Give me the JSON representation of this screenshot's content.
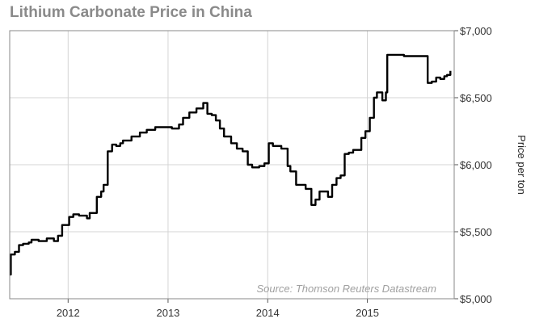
{
  "chart_data": {
    "type": "line",
    "title": "Lithium Carbonate Price in China",
    "xlabel": "",
    "ylabel": "Price per ton",
    "annotation": "Source: Thomson Reuters Datastream",
    "x_ticks": [
      "2012",
      "2013",
      "2014",
      "2015"
    ],
    "y_ticks": [
      "$5,000",
      "$5,500",
      "$6,000",
      "$6,500",
      "$7,000"
    ],
    "xlim": [
      "2011-06-01",
      "2015-11-15"
    ],
    "ylim": [
      5000,
      7000
    ],
    "grid": true,
    "series": [
      {
        "x": [
          "2011-06-01",
          "2011-06-05",
          "2011-06-20",
          "2011-07-05",
          "2011-07-20",
          "2011-08-10",
          "2011-08-20",
          "2011-09-15",
          "2011-10-15",
          "2011-11-10",
          "2011-11-25",
          "2011-12-10",
          "2012-01-05",
          "2012-01-20",
          "2012-02-10",
          "2012-03-10",
          "2012-03-20",
          "2012-04-15",
          "2012-05-01",
          "2012-05-10",
          "2012-05-25",
          "2012-06-10",
          "2012-06-25",
          "2012-07-10",
          "2012-07-20",
          "2012-08-20",
          "2012-09-20",
          "2012-10-15",
          "2012-11-15",
          "2012-12-15",
          "2013-01-15",
          "2013-02-10",
          "2013-02-25",
          "2013-03-20",
          "2013-04-15",
          "2013-05-10",
          "2013-05-25",
          "2013-06-10",
          "2013-06-25",
          "2013-07-10",
          "2013-07-25",
          "2013-08-20",
          "2013-09-10",
          "2013-10-01",
          "2013-10-20",
          "2013-11-05",
          "2013-11-15",
          "2013-12-01",
          "2013-12-20",
          "2014-01-05",
          "2014-01-20",
          "2014-02-20",
          "2014-03-15",
          "2014-03-25",
          "2014-04-15",
          "2014-05-20",
          "2014-06-10",
          "2014-06-25",
          "2014-07-10",
          "2014-07-25",
          "2014-08-10",
          "2014-08-25",
          "2014-09-10",
          "2014-09-25",
          "2014-10-10",
          "2014-10-25",
          "2014-11-10",
          "2014-11-25",
          "2014-12-10",
          "2014-12-25",
          "2015-01-10",
          "2015-01-25",
          "2015-02-05",
          "2015-02-25",
          "2015-03-10",
          "2015-03-15",
          "2015-03-20",
          "2015-05-15",
          "2015-06-20",
          "2015-07-25",
          "2015-08-05",
          "2015-08-10",
          "2015-08-25",
          "2015-09-10",
          "2015-09-25",
          "2015-10-10",
          "2015-10-20",
          "2015-11-01"
        ],
        "y": [
          5180,
          5330,
          5350,
          5400,
          5410,
          5420,
          5440,
          5430,
          5450,
          5430,
          5470,
          5550,
          5610,
          5630,
          5620,
          5600,
          5640,
          5760,
          5800,
          5850,
          6100,
          6150,
          6140,
          6160,
          6180,
          6210,
          6240,
          6260,
          6280,
          6280,
          6270,
          6300,
          6350,
          6390,
          6420,
          6460,
          6380,
          6370,
          6330,
          6270,
          6210,
          6160,
          6120,
          6100,
          6000,
          5980,
          5980,
          5990,
          6010,
          6160,
          6140,
          6120,
          5990,
          5950,
          5850,
          5820,
          5700,
          5740,
          5800,
          5800,
          5760,
          5850,
          5900,
          5920,
          6080,
          6090,
          6110,
          6110,
          6200,
          6250,
          6350,
          6500,
          6540,
          6480,
          6540,
          6820,
          6820,
          6810,
          6810,
          6810,
          6810,
          6610,
          6620,
          6650,
          6640,
          6660,
          6670,
          6700
        ]
      }
    ]
  }
}
